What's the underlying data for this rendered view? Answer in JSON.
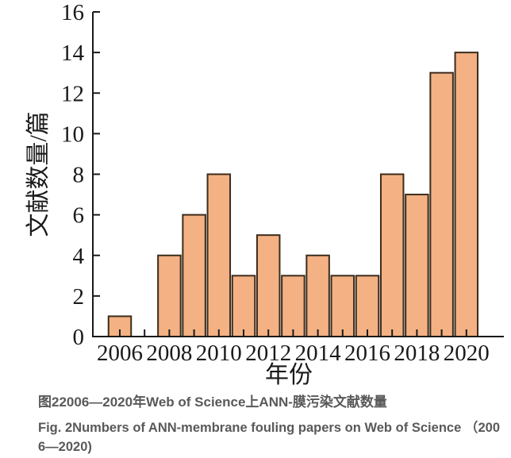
{
  "figure": {
    "caption_zh": "图22006—2020年Web of Science上ANN-膜污染文献数量",
    "caption_en": "Fig. 2Numbers of ANN-membrane fouling papers on Web of Science （2006—2020)"
  },
  "chart_data": {
    "type": "bar",
    "title": "",
    "xlabel": "年份",
    "ylabel": "文献数量/篇",
    "categories": [
      2006,
      2007,
      2008,
      2009,
      2010,
      2011,
      2012,
      2013,
      2014,
      2015,
      2016,
      2017,
      2018,
      2019,
      2020
    ],
    "values": [
      1,
      0,
      4,
      6,
      8,
      3,
      5,
      3,
      4,
      3,
      3,
      8,
      7,
      13,
      14
    ],
    "x_tick_labels": [
      "2006",
      "2008",
      "2010",
      "2012",
      "2014",
      "2016",
      "2018",
      "2020"
    ],
    "y_ticks": [
      0,
      2,
      4,
      6,
      8,
      10,
      12,
      14,
      16
    ],
    "ylim": [
      0,
      16
    ],
    "grid": false,
    "legend_position": "none",
    "bar_color": "#F4B183",
    "bar_border_color": "#3B2C1E",
    "axis_color": "#1A1A1A"
  }
}
